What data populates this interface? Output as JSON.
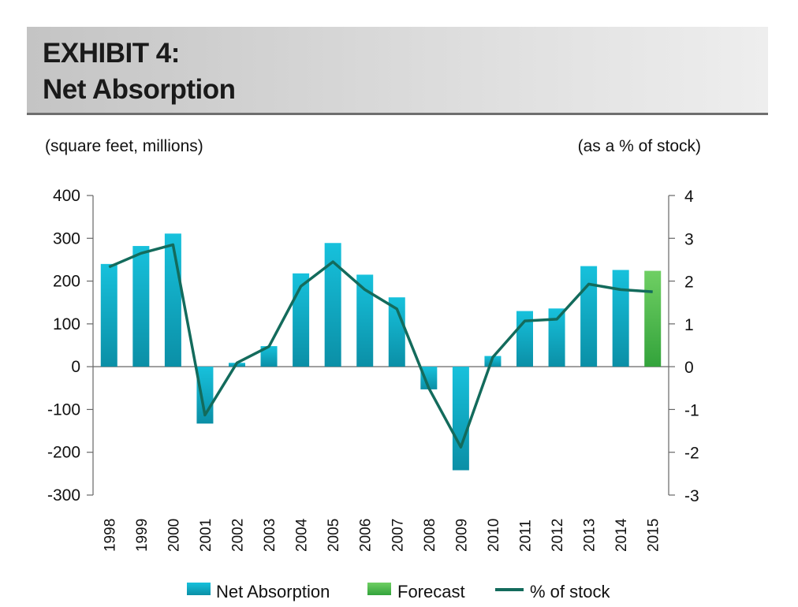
{
  "header": {
    "line1": "EXHIBIT 4:",
    "line2": "Net Absorption"
  },
  "chart_data": {
    "type": "bar",
    "title": "EXHIBIT 4: Net Absorption",
    "ylabel": "(square feet, millions)",
    "y2label": "(as a % of stock)",
    "ylim": [
      -300,
      400
    ],
    "y2lim": [
      -3,
      4
    ],
    "yticks": [
      "400",
      "300",
      "200",
      "100",
      "0",
      "-100",
      "-200",
      "-300"
    ],
    "y2ticks": [
      "4",
      "3",
      "2",
      "1",
      "0",
      "-1",
      "-2",
      "-3"
    ],
    "categories": [
      "1998",
      "1999",
      "2000",
      "2001",
      "2002",
      "2003",
      "2004",
      "2005",
      "2006",
      "2007",
      "2008",
      "2009",
      "2010",
      "2011",
      "2012",
      "2013",
      "2014",
      "2015"
    ],
    "series": [
      {
        "name": "Net Absorption",
        "kind": "bar",
        "values": [
          240,
          282,
          311,
          -133,
          9,
          48,
          218,
          289,
          215,
          162,
          -53,
          -242,
          25,
          130,
          136,
          235,
          226,
          null
        ]
      },
      {
        "name": "Forecast",
        "kind": "bar",
        "values": [
          null,
          null,
          null,
          null,
          null,
          null,
          null,
          null,
          null,
          null,
          null,
          null,
          null,
          null,
          null,
          null,
          null,
          224
        ]
      },
      {
        "name": "% of stock",
        "kind": "line",
        "axis": "right",
        "values": [
          2.33,
          2.65,
          2.85,
          -1.13,
          0.09,
          0.47,
          1.88,
          2.45,
          1.8,
          1.35,
          -0.5,
          -1.88,
          0.22,
          1.07,
          1.11,
          1.93,
          1.8,
          1.75
        ]
      }
    ],
    "legend": [
      "Net Absorption",
      "Forecast",
      "% of stock"
    ],
    "legend_position": "bottom",
    "colors": {
      "bar_top": "#17c1dc",
      "bar_bottom": "#0b8fa6",
      "forecast_top": "#6fcf63",
      "forecast_bottom": "#33a33b",
      "line": "#136b5c",
      "axis": "#666666"
    }
  }
}
